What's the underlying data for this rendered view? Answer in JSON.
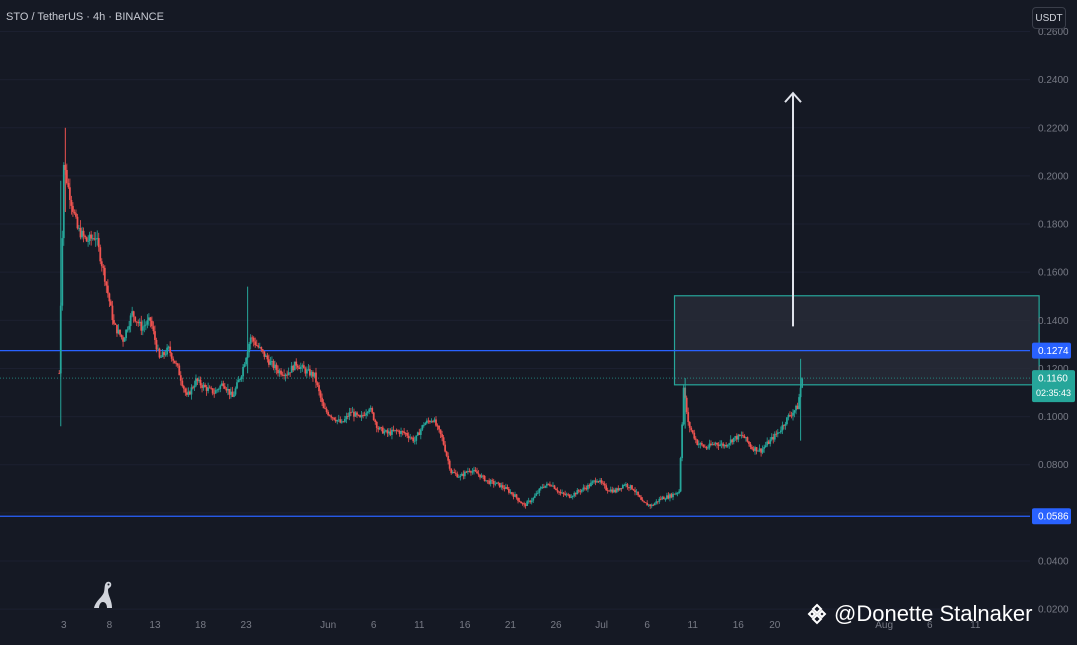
{
  "header": {
    "symbol": "STO / TetherUS · 4h · BINANCE",
    "currency": "USDT"
  },
  "watermark": {
    "text": "@Donette Stalnaker",
    "icon": "binance-diamond-icon"
  },
  "tv_logo_icon": "dino-icon",
  "colors": {
    "background": "#151924",
    "up": "#26a69a",
    "down": "#ef5350",
    "level_line": "#2962ff",
    "zone_border": "#26a69a",
    "zone_fill": "#2a2e39",
    "arrow": "#e0e3eb",
    "axis_text": "#787b86"
  },
  "chart_data": {
    "type": "candlestick",
    "title": "STO / TetherUS · 4h · BINANCE",
    "ylim": [
      0.0188,
      0.2731
    ],
    "y_ticks": [
      "0.2600",
      "0.2400",
      "0.2200",
      "0.2000",
      "0.1800",
      "0.1600",
      "0.1400",
      "0.1200",
      "0.1000",
      "0.0800",
      "0.0600",
      "0.0400",
      "0.0200"
    ],
    "y_tick_values": [
      0.26,
      0.24,
      0.22,
      0.2,
      0.18,
      0.16,
      0.14,
      0.12,
      0.1,
      0.08,
      0.06,
      0.04,
      0.02
    ],
    "x_ticks": [
      "3",
      "8",
      "13",
      "18",
      "23",
      "Jun",
      "6",
      "11",
      "16",
      "21",
      "26",
      "Jul",
      "6",
      "11",
      "16",
      "20",
      "Aug",
      "6",
      "11"
    ],
    "x_tick_dates": [
      "2023-05-03",
      "2023-05-08",
      "2023-05-13",
      "2023-05-18",
      "2023-05-23",
      "2023-06-01",
      "2023-06-06",
      "2023-06-11",
      "2023-06-16",
      "2023-06-21",
      "2023-06-26",
      "2023-07-01",
      "2023-07-06",
      "2023-07-11",
      "2023-07-16",
      "2023-07-20",
      "2023-08-01",
      "2023-08-06",
      "2023-08-11"
    ],
    "x_range": [
      "2023-04-26",
      "2023-08-17"
    ],
    "price_path": [
      [
        "2023-05-02T12:00",
        0.118
      ],
      [
        "2023-05-03T00:00",
        0.205
      ],
      [
        "2023-05-03T12:00",
        0.195
      ],
      [
        "2023-05-04T12:00",
        0.178
      ],
      [
        "2023-05-05T12:00",
        0.173
      ],
      [
        "2023-05-06T12:00",
        0.175
      ],
      [
        "2023-05-07T12:00",
        0.158
      ],
      [
        "2023-05-08T12:00",
        0.138
      ],
      [
        "2023-05-09T12:00",
        0.132
      ],
      [
        "2023-05-10T12:00",
        0.143
      ],
      [
        "2023-05-11T12:00",
        0.137
      ],
      [
        "2023-05-12T12:00",
        0.14
      ],
      [
        "2023-05-13T12:00",
        0.124
      ],
      [
        "2023-05-14T12:00",
        0.128
      ],
      [
        "2023-05-15T12:00",
        0.12
      ],
      [
        "2023-05-16T12:00",
        0.108
      ],
      [
        "2023-05-17T12:00",
        0.115
      ],
      [
        "2023-05-18T12:00",
        0.112
      ],
      [
        "2023-05-19T12:00",
        0.11
      ],
      [
        "2023-05-20T12:00",
        0.114
      ],
      [
        "2023-05-21T12:00",
        0.108
      ],
      [
        "2023-05-22T12:00",
        0.118
      ],
      [
        "2023-05-23T12:00",
        0.133
      ],
      [
        "2023-05-24T12:00",
        0.128
      ],
      [
        "2023-05-25T12:00",
        0.123
      ],
      [
        "2023-05-26T12:00",
        0.119
      ],
      [
        "2023-05-27T12:00",
        0.118
      ],
      [
        "2023-05-28T12:00",
        0.122
      ],
      [
        "2023-05-29T12:00",
        0.119
      ],
      [
        "2023-05-30T12:00",
        0.117
      ],
      [
        "2023-05-31T12:00",
        0.103
      ],
      [
        "2023-06-01T12:00",
        0.1
      ],
      [
        "2023-06-02T12:00",
        0.097
      ],
      [
        "2023-06-03T12:00",
        0.102
      ],
      [
        "2023-06-04T12:00",
        0.099
      ],
      [
        "2023-06-05T12:00",
        0.104
      ],
      [
        "2023-06-06T12:00",
        0.095
      ],
      [
        "2023-06-07T12:00",
        0.093
      ],
      [
        "2023-06-08T12:00",
        0.094
      ],
      [
        "2023-06-09T12:00",
        0.093
      ],
      [
        "2023-06-10T12:00",
        0.09
      ],
      [
        "2023-06-11T12:00",
        0.097
      ],
      [
        "2023-06-12T12:00",
        0.099
      ],
      [
        "2023-06-13T12:00",
        0.091
      ],
      [
        "2023-06-14T12:00",
        0.077
      ],
      [
        "2023-06-15T12:00",
        0.075
      ],
      [
        "2023-06-16T12:00",
        0.078
      ],
      [
        "2023-06-17T12:00",
        0.076
      ],
      [
        "2023-06-18T12:00",
        0.073
      ],
      [
        "2023-06-19T12:00",
        0.072
      ],
      [
        "2023-06-20T12:00",
        0.07
      ],
      [
        "2023-06-21T12:00",
        0.067
      ],
      [
        "2023-06-22T12:00",
        0.063
      ],
      [
        "2023-06-23T12:00",
        0.066
      ],
      [
        "2023-06-24T12:00",
        0.071
      ],
      [
        "2023-06-25T12:00",
        0.072
      ],
      [
        "2023-06-26T12:00",
        0.068
      ],
      [
        "2023-06-27T12:00",
        0.067
      ],
      [
        "2023-06-28T12:00",
        0.069
      ],
      [
        "2023-06-29T12:00",
        0.071
      ],
      [
        "2023-06-30T12:00",
        0.074
      ],
      [
        "2023-07-01T12:00",
        0.07
      ],
      [
        "2023-07-02T12:00",
        0.069
      ],
      [
        "2023-07-03T12:00",
        0.072
      ],
      [
        "2023-07-04T12:00",
        0.07
      ],
      [
        "2023-07-05T12:00",
        0.064
      ],
      [
        "2023-07-06T12:00",
        0.063
      ],
      [
        "2023-07-07T12:00",
        0.066
      ],
      [
        "2023-07-08T12:00",
        0.067
      ],
      [
        "2023-07-09T12:00",
        0.069
      ],
      [
        "2023-07-10T00:00",
        0.112
      ],
      [
        "2023-07-10T12:00",
        0.097
      ],
      [
        "2023-07-11T12:00",
        0.089
      ],
      [
        "2023-07-12T12:00",
        0.087
      ],
      [
        "2023-07-13T12:00",
        0.089
      ],
      [
        "2023-07-14T12:00",
        0.088
      ],
      [
        "2023-07-15T12:00",
        0.091
      ],
      [
        "2023-07-16T12:00",
        0.092
      ],
      [
        "2023-07-17T12:00",
        0.087
      ],
      [
        "2023-07-18T12:00",
        0.086
      ],
      [
        "2023-07-19T12:00",
        0.09
      ],
      [
        "2023-07-20T12:00",
        0.094
      ],
      [
        "2023-07-21T12:00",
        0.1
      ],
      [
        "2023-07-22T12:00",
        0.104
      ],
      [
        "2023-07-23T00:00",
        0.116
      ]
    ],
    "horizontal_levels": [
      {
        "label": "0.1274",
        "value": 0.1274
      },
      {
        "label": "0.0586",
        "value": 0.0586
      }
    ],
    "last_price": {
      "label": "0.1160",
      "value": 0.116,
      "countdown": "02:35:43"
    },
    "zone": {
      "start": "2023-07-09",
      "end": "2023-08-18",
      "low": 0.1132,
      "high": 0.1502
    },
    "arrow": {
      "date": "2023-07-22",
      "from": 0.1375,
      "to": 0.2344
    }
  }
}
